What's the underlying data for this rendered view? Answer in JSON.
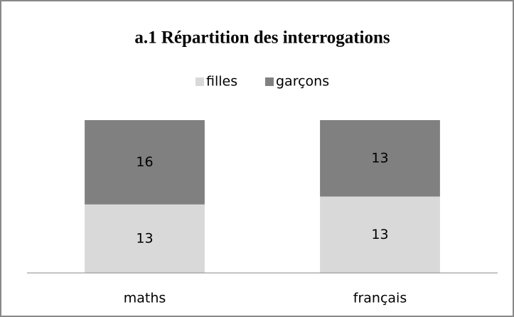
{
  "chart_data": {
    "type": "bar",
    "stacking": "percent",
    "title": "a.1 Répartition des interrogations",
    "categories": [
      "maths",
      "français"
    ],
    "series": [
      {
        "name": "filles",
        "color": "#d9d9d9",
        "values": [
          13,
          13
        ]
      },
      {
        "name": "garçons",
        "color": "#808080",
        "values": [
          16,
          13
        ]
      }
    ],
    "legend": "top"
  }
}
